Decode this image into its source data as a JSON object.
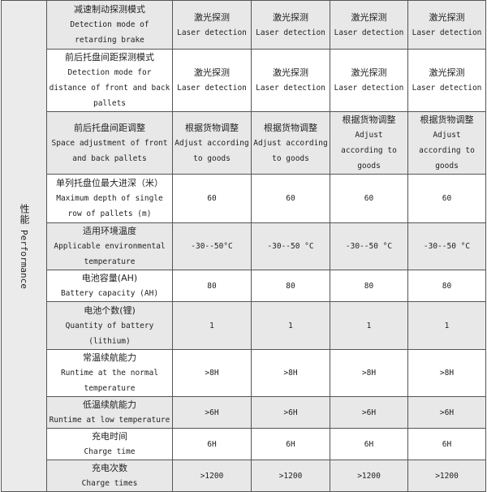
{
  "section": {
    "cn": "性能",
    "en": "Performance"
  },
  "rows": [
    {
      "cn": "减速制动探测模式",
      "en": "Detection mode of retarding brake",
      "values": [
        [
          "激光探测",
          "Laser detection"
        ],
        [
          "激光探测",
          "Laser detection"
        ],
        [
          "激光探测",
          "Laser detection"
        ],
        [
          "激光探测",
          "Laser detection"
        ]
      ]
    },
    {
      "cn": "前后托盘间距探测模式",
      "en": "Detection mode for distance of front and back pallets",
      "values": [
        [
          "激光探测",
          "Laser detection"
        ],
        [
          "激光探测",
          "Laser detection"
        ],
        [
          "激光探测",
          "Laser detection"
        ],
        [
          "激光探测",
          "Laser detection"
        ]
      ]
    },
    {
      "cn": "前后托盘间距调整",
      "en": "Space adjustment of front and back pallets",
      "values": [
        [
          "根据货物调整",
          "Adjust according to goods"
        ],
        [
          "根据货物调整",
          "Adjust according to goods"
        ],
        [
          "根据货物调整",
          "Adjust according to goods"
        ],
        [
          "根据货物调整",
          "Adjust according to goods"
        ]
      ]
    },
    {
      "cn": "单列托盘位最大进深（米）",
      "en": "Maximum depth of single row of pallets (m)",
      "values": [
        [
          "60"
        ],
        [
          "60"
        ],
        [
          "60"
        ],
        [
          "60"
        ]
      ]
    },
    {
      "cn": "适用环境温度",
      "en": "Applicable environmental temperature",
      "values": [
        [
          "-30--50°C"
        ],
        [
          "-30--50 °C"
        ],
        [
          "-30--50 °C"
        ],
        [
          "-30--50 °C"
        ]
      ]
    },
    {
      "cn": "电池容量(AH)",
      "en": "Battery capacity (AH)",
      "values": [
        [
          "80"
        ],
        [
          "80"
        ],
        [
          "80"
        ],
        [
          "80"
        ]
      ]
    },
    {
      "cn": "电池个数(锂)",
      "en": "Quantity of battery (lithium)",
      "values": [
        [
          "1"
        ],
        [
          "1"
        ],
        [
          "1"
        ],
        [
          "1"
        ]
      ]
    },
    {
      "cn": "常温续航能力",
      "en": "Runtime at the normal temperature",
      "values": [
        [
          ">8H"
        ],
        [
          ">8H"
        ],
        [
          ">8H"
        ],
        [
          ">8H"
        ]
      ]
    },
    {
      "cn": "低温续航能力",
      "en": "Runtime at low temperature",
      "values": [
        [
          ">6H"
        ],
        [
          ">6H"
        ],
        [
          ">6H"
        ],
        [
          ">6H"
        ]
      ]
    },
    {
      "cn": "充电时间",
      "en": "Charge time",
      "values": [
        [
          "6H"
        ],
        [
          "6H"
        ],
        [
          "6H"
        ],
        [
          "6H"
        ]
      ]
    },
    {
      "cn": "充电次数",
      "en": "Charge times",
      "values": [
        [
          ">1200"
        ],
        [
          ">1200"
        ],
        [
          ">1200"
        ],
        [
          ">1200"
        ]
      ]
    }
  ]
}
